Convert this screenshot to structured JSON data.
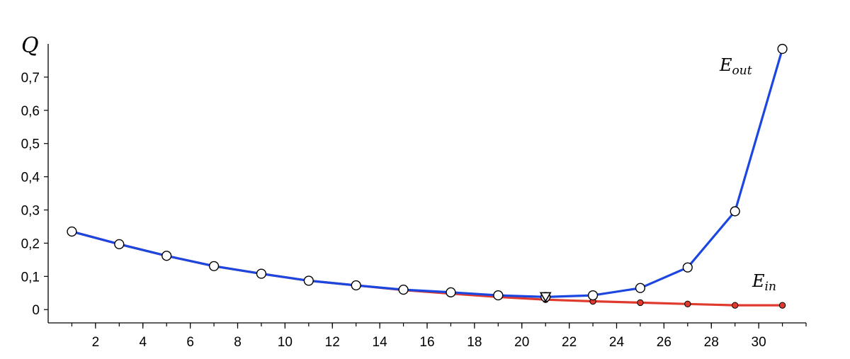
{
  "chart_data": {
    "type": "line",
    "ylabel": "Q",
    "xlim": [
      0,
      32
    ],
    "ylim": [
      -0.04,
      0.8
    ],
    "x_ticks": [
      2,
      4,
      6,
      8,
      10,
      12,
      14,
      16,
      18,
      20,
      22,
      24,
      26,
      28,
      30
    ],
    "y_ticks": [
      0,
      0.1,
      0.2,
      0.3,
      0.4,
      0.5,
      0.6,
      0.7
    ],
    "y_tick_labels": [
      "0",
      "0,1",
      "0,2",
      "0,3",
      "0,4",
      "0,5",
      "0,6",
      "0,7"
    ],
    "series": [
      {
        "name": "E_in",
        "label_main": "E",
        "label_sub": "in",
        "color": "#e03a2f",
        "marker": "filled-circle",
        "x": [
          1,
          3,
          5,
          7,
          9,
          11,
          13,
          15,
          17,
          19,
          21,
          23,
          25,
          27,
          29,
          31
        ],
        "y": [
          0.235,
          0.197,
          0.162,
          0.131,
          0.108,
          0.087,
          0.073,
          0.059,
          0.048,
          0.038,
          0.03,
          0.025,
          0.021,
          0.017,
          0.013,
          0.013
        ]
      },
      {
        "name": "E_out",
        "label_main": "E",
        "label_sub": "out",
        "color": "#1c46e0",
        "marker": "open-circle",
        "x": [
          1,
          3,
          5,
          7,
          9,
          11,
          13,
          15,
          17,
          19,
          21,
          23,
          25,
          27,
          29,
          31
        ],
        "y": [
          0.235,
          0.197,
          0.162,
          0.131,
          0.108,
          0.087,
          0.073,
          0.06,
          0.052,
          0.043,
          0.038,
          0.043,
          0.065,
          0.127,
          0.296,
          0.785
        ]
      }
    ],
    "annotations": [
      {
        "type": "minimum-marker",
        "marker": "open-triangle-down",
        "x": 21,
        "y": 0.038
      }
    ]
  }
}
